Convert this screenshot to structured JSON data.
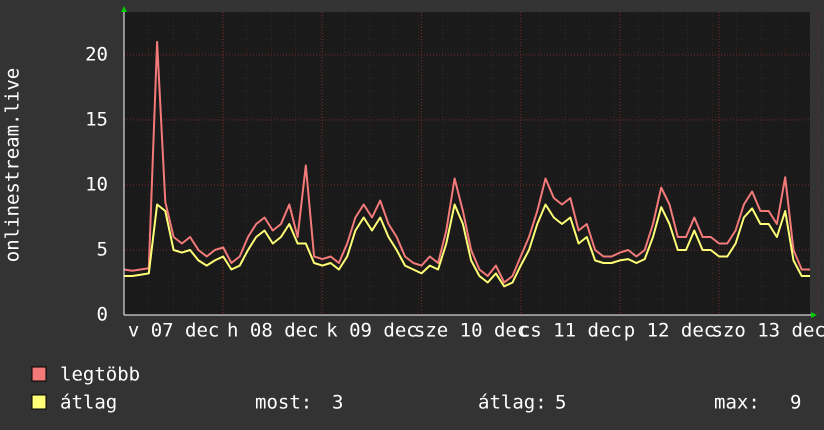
{
  "chart_data": {
    "type": "line",
    "y_axis_label": "onlinestream.live",
    "categories": [
      null,
      null,
      null,
      null,
      null,
      null,
      "v 07 dec",
      null,
      null,
      null,
      null,
      null,
      null,
      null,
      null,
      null,
      null,
      null,
      "h 08 dec",
      null,
      null,
      null,
      null,
      null,
      null,
      null,
      null,
      null,
      null,
      null,
      "k 09 dec",
      null,
      null,
      null,
      null,
      null,
      null,
      null,
      null,
      null,
      null,
      null,
      "sze 10 dec",
      null,
      null,
      null,
      null,
      null,
      null,
      null,
      null,
      null,
      null,
      null,
      "cs 11 dec",
      null,
      null,
      null,
      null,
      null,
      null,
      null,
      null,
      null,
      null,
      null,
      "p 12 dec",
      null,
      null,
      null,
      null,
      null,
      null,
      null,
      null,
      null,
      null,
      null,
      "szo 13 dec",
      null,
      null,
      null,
      null,
      null
    ],
    "series": [
      {
        "name": "legtöbb",
        "color": "#f47a7a",
        "values": [
          3.5,
          3.4,
          3.5,
          3.6,
          21,
          8.7,
          6,
          5.5,
          6,
          5,
          4.5,
          5,
          5.2,
          4,
          4.5,
          6,
          7,
          7.5,
          6.5,
          7,
          8.5,
          6,
          11.5,
          4.5,
          4.3,
          4.5,
          4,
          5.5,
          7.5,
          8.5,
          7.5,
          8.8,
          7,
          6,
          4.5,
          4,
          3.8,
          4.5,
          4,
          6.5,
          10.5,
          8,
          5,
          3.5,
          3,
          3.8,
          2.5,
          3,
          4.5,
          6,
          8,
          10.5,
          9,
          8.5,
          9,
          6.5,
          7,
          5,
          4.5,
          4.5,
          4.8,
          5,
          4.5,
          5,
          7,
          9.8,
          8.5,
          6,
          6,
          7.5,
          6,
          6,
          5.5,
          5.5,
          6.5,
          8.5,
          9.5,
          8,
          8,
          7,
          10.6,
          5,
          3.5,
          3.5
        ]
      },
      {
        "name": "átlag",
        "color": "#ffff77",
        "values": [
          3,
          3,
          3.1,
          3.2,
          8.5,
          8,
          5,
          4.8,
          5,
          4.2,
          3.8,
          4.2,
          4.5,
          3.5,
          3.8,
          5,
          6,
          6.5,
          5.5,
          6,
          7,
          5.5,
          5.5,
          4,
          3.8,
          4,
          3.5,
          4.5,
          6.5,
          7.5,
          6.5,
          7.5,
          6,
          5,
          3.8,
          3.5,
          3.2,
          3.8,
          3.5,
          5.5,
          8.5,
          7,
          4.2,
          3,
          2.5,
          3.2,
          2.2,
          2.5,
          3.8,
          5,
          7,
          8.5,
          7.5,
          7,
          7.5,
          5.5,
          6,
          4.2,
          4,
          4,
          4.2,
          4.3,
          4,
          4.3,
          6,
          8.3,
          7,
          5,
          5,
          6.5,
          5,
          5,
          4.5,
          4.5,
          5.5,
          7.5,
          8.2,
          7,
          7,
          6,
          8,
          4.2,
          3,
          3
        ]
      }
    ],
    "stats": [
      {
        "label": "most:",
        "value": 3
      },
      {
        "label": "átlag:",
        "value": 5
      },
      {
        "label": "max:",
        "value": 9
      }
    ],
    "ylim": [
      0,
      23.3
    ],
    "yticks": [
      0,
      5,
      10,
      15,
      20
    ],
    "grid": true
  }
}
